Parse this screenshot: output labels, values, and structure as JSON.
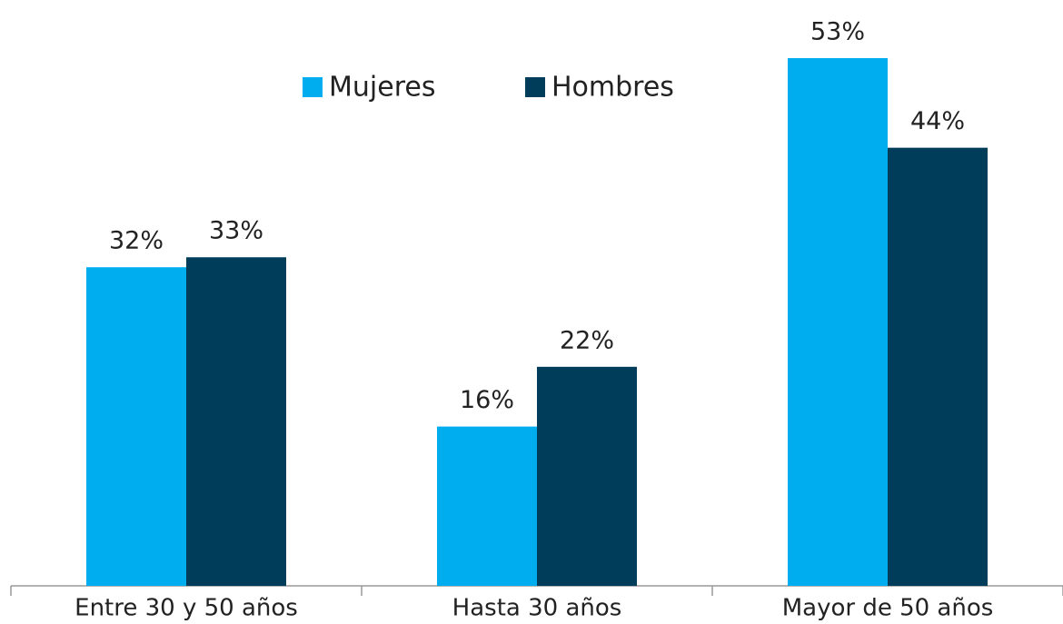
{
  "chart_data": {
    "type": "bar",
    "categories": [
      "Entre 30 y 50 años",
      "Hasta 30 años",
      "Mayor de 50 años"
    ],
    "series": [
      {
        "name": "Mujeres",
        "color": "#00adef",
        "values": [
          32,
          16,
          53
        ],
        "value_labels": [
          "32%",
          "16%",
          "53%"
        ]
      },
      {
        "name": "Hombres",
        "color": "#003d5a",
        "values": [
          33,
          22,
          44
        ],
        "value_labels": [
          "33%",
          "22%",
          "44%"
        ]
      }
    ],
    "legend": "top"
  }
}
